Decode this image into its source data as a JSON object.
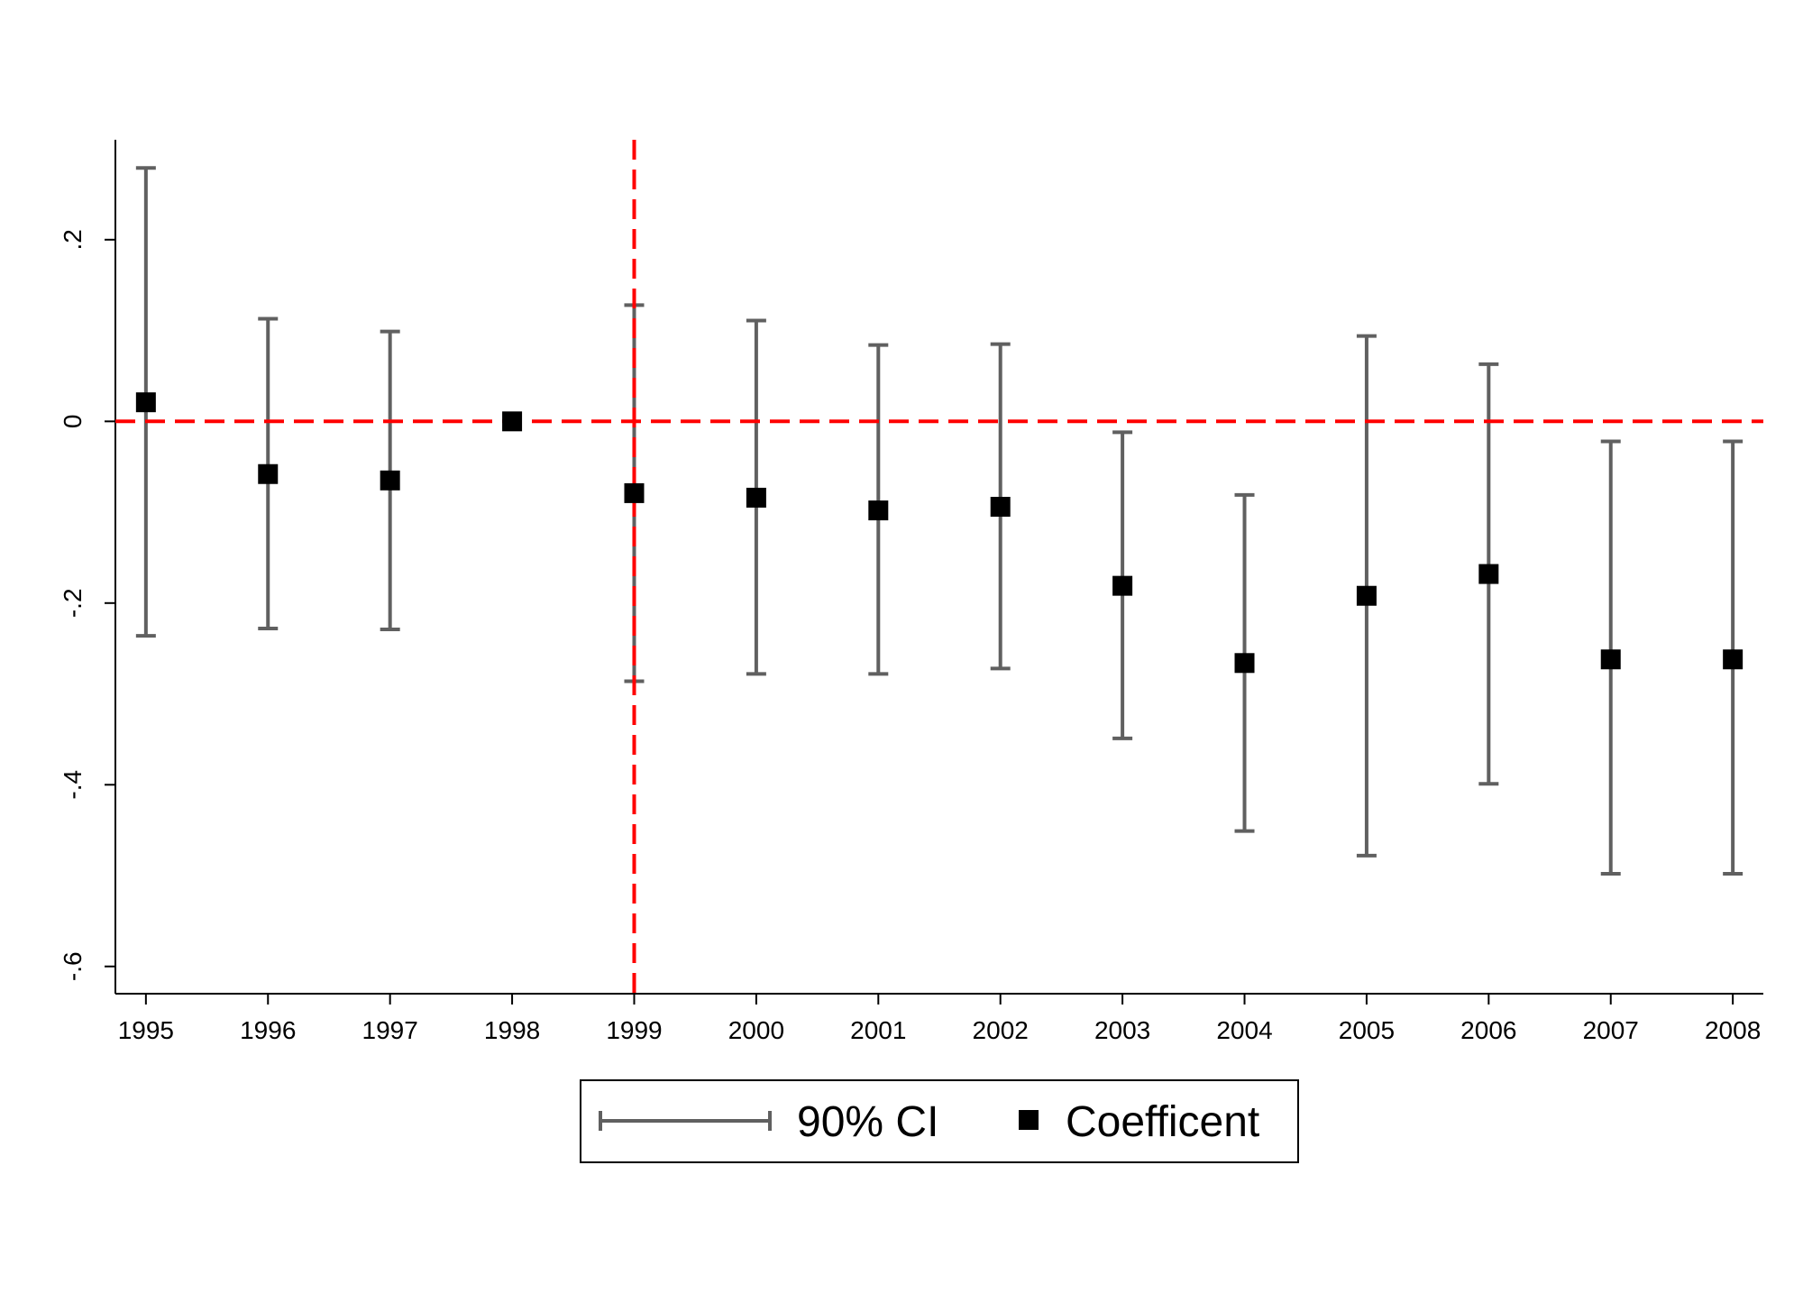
{
  "chart_data": {
    "type": "scatter",
    "variant": "coefficient-plot-with-error-bars",
    "title": "",
    "xlabel": "",
    "ylabel": "",
    "x": [
      1995,
      1996,
      1997,
      1998,
      1999,
      2000,
      2001,
      2002,
      2003,
      2004,
      2005,
      2006,
      2007,
      2008
    ],
    "x_tick_labels": [
      "1995",
      "1996",
      "1997",
      "1998",
      "1999",
      "2000",
      "2001",
      "2002",
      "2003",
      "2004",
      "2005",
      "2006",
      "2007",
      "2008"
    ],
    "y_ticks": [
      0.2,
      0,
      -0.2,
      -0.4,
      -0.6
    ],
    "y_tick_labels": [
      ".2",
      "0",
      "-.2",
      "-.4",
      "-.6"
    ],
    "ylim": [
      -0.63,
      0.31
    ],
    "xlim": [
      1994.75,
      2008.25
    ],
    "series": [
      {
        "name": "Coefficent",
        "marker": "square",
        "color": "#000000",
        "values": [
          0.021,
          -0.058,
          -0.065,
          0.0,
          -0.079,
          -0.084,
          -0.098,
          -0.094,
          -0.181,
          -0.266,
          -0.192,
          -0.168,
          -0.262,
          -0.262
        ]
      },
      {
        "name": "90% CI",
        "marker": "capped-range",
        "color": "#606060",
        "lower": [
          -0.236,
          -0.228,
          -0.229,
          null,
          -0.286,
          -0.278,
          -0.278,
          -0.272,
          -0.349,
          -0.451,
          -0.478,
          -0.399,
          -0.498,
          -0.498
        ],
        "upper": [
          0.279,
          0.113,
          0.099,
          null,
          0.128,
          0.111,
          0.084,
          0.085,
          -0.012,
          -0.081,
          0.094,
          0.063,
          -0.022,
          -0.022
        ]
      }
    ],
    "reference_lines": [
      {
        "axis": "y",
        "value": 0,
        "style": "dashed",
        "color": "#ff0000"
      },
      {
        "axis": "x",
        "value": 1999,
        "style": "dashed",
        "color": "#ff0000"
      }
    ],
    "grid": false,
    "legend_position": "bottom-center",
    "legend": [
      "90% CI",
      "Coefficent"
    ]
  }
}
